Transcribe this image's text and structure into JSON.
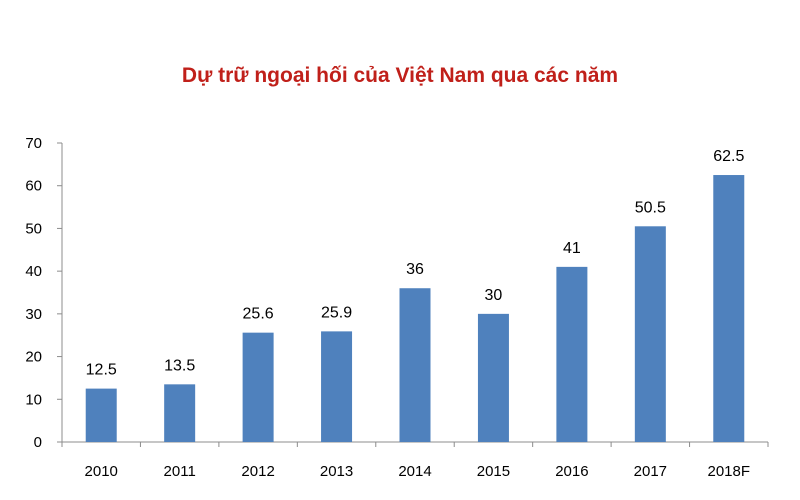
{
  "chart_data": {
    "type": "bar",
    "title": "Dự trữ ngoại hối của Việt Nam qua các năm",
    "categories": [
      "2010",
      "2011",
      "2012",
      "2013",
      "2014",
      "2015",
      "2016",
      "2017",
      "2018F"
    ],
    "values": [
      12.5,
      13.5,
      25.6,
      25.9,
      36,
      30,
      41,
      50.5,
      62.5
    ],
    "data_labels": [
      "12.5",
      "13.5",
      "25.6",
      "25.9",
      "36",
      "30",
      "41",
      "50.5",
      "62.5"
    ],
    "xlabel": "",
    "ylabel": "",
    "ylim": [
      0,
      70
    ],
    "yticks": [
      "0",
      "10",
      "20",
      "30",
      "40",
      "50",
      "60",
      "70"
    ],
    "grid": false,
    "legend": "none"
  },
  "colors": {
    "bar": "#4f81bd",
    "title": "#c0201a",
    "axis": "#8c8c8c"
  }
}
